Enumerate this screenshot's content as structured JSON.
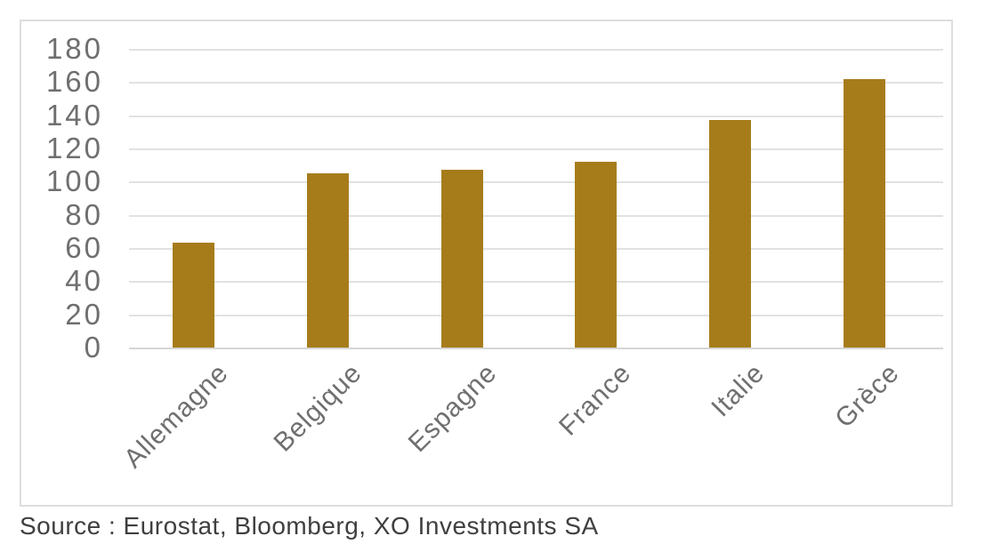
{
  "chart_data": {
    "type": "bar",
    "categories": [
      "Allemagne",
      "Belgique",
      "Espagne",
      "France",
      "Italie",
      "Grèce"
    ],
    "values": [
      63,
      105,
      107,
      112,
      137,
      162
    ],
    "title": "",
    "xlabel": "",
    "ylabel": "",
    "ylim": [
      0,
      180
    ],
    "ytick_step": 20,
    "yticks": [
      180,
      160,
      140,
      120,
      100,
      80,
      60,
      40,
      20,
      0
    ],
    "grid": true,
    "legend": false,
    "bar_color": "#a67c1b",
    "gridline_color": "#e2e2e2",
    "axis_text_color": "#6f6f6f",
    "source": "Source : Eurostat, Bloomberg, XO Investments SA"
  }
}
